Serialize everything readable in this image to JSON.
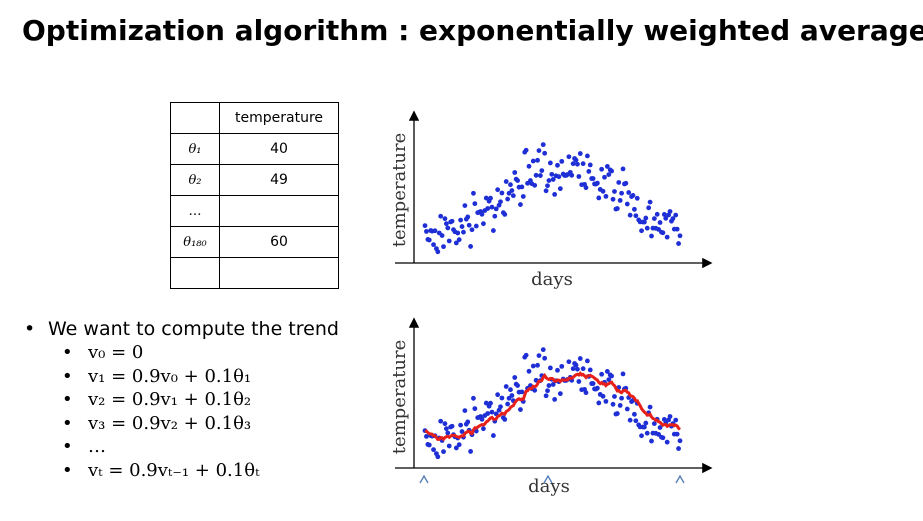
{
  "header": {
    "title": "Optimization algorithm : exponentially weighted average"
  },
  "table": {
    "header": [
      "",
      "temperature"
    ],
    "rows": [
      [
        "θ₁",
        "40"
      ],
      [
        "θ₂",
        "49"
      ],
      [
        "…",
        ""
      ],
      [
        "θ₁₈₀",
        "60"
      ],
      [
        "",
        ""
      ]
    ]
  },
  "plots": [
    {
      "y_label": "temperature",
      "x_label": "days"
    },
    {
      "y_label": "temperature",
      "x_label": "days"
    }
  ],
  "bullets": {
    "main": "We want to compute the trend",
    "items": [
      "v₀ = 0",
      "v₁ = 0.9v₀ + 0.1θ₁",
      "v₂ = 0.9v₁ + 0.1θ₂",
      "v₃ = 0.9v₂ + 0.1θ₃",
      "…",
      "vₜ = 0.9vₜ₋₁ + 0.1θₜ"
    ]
  }
}
